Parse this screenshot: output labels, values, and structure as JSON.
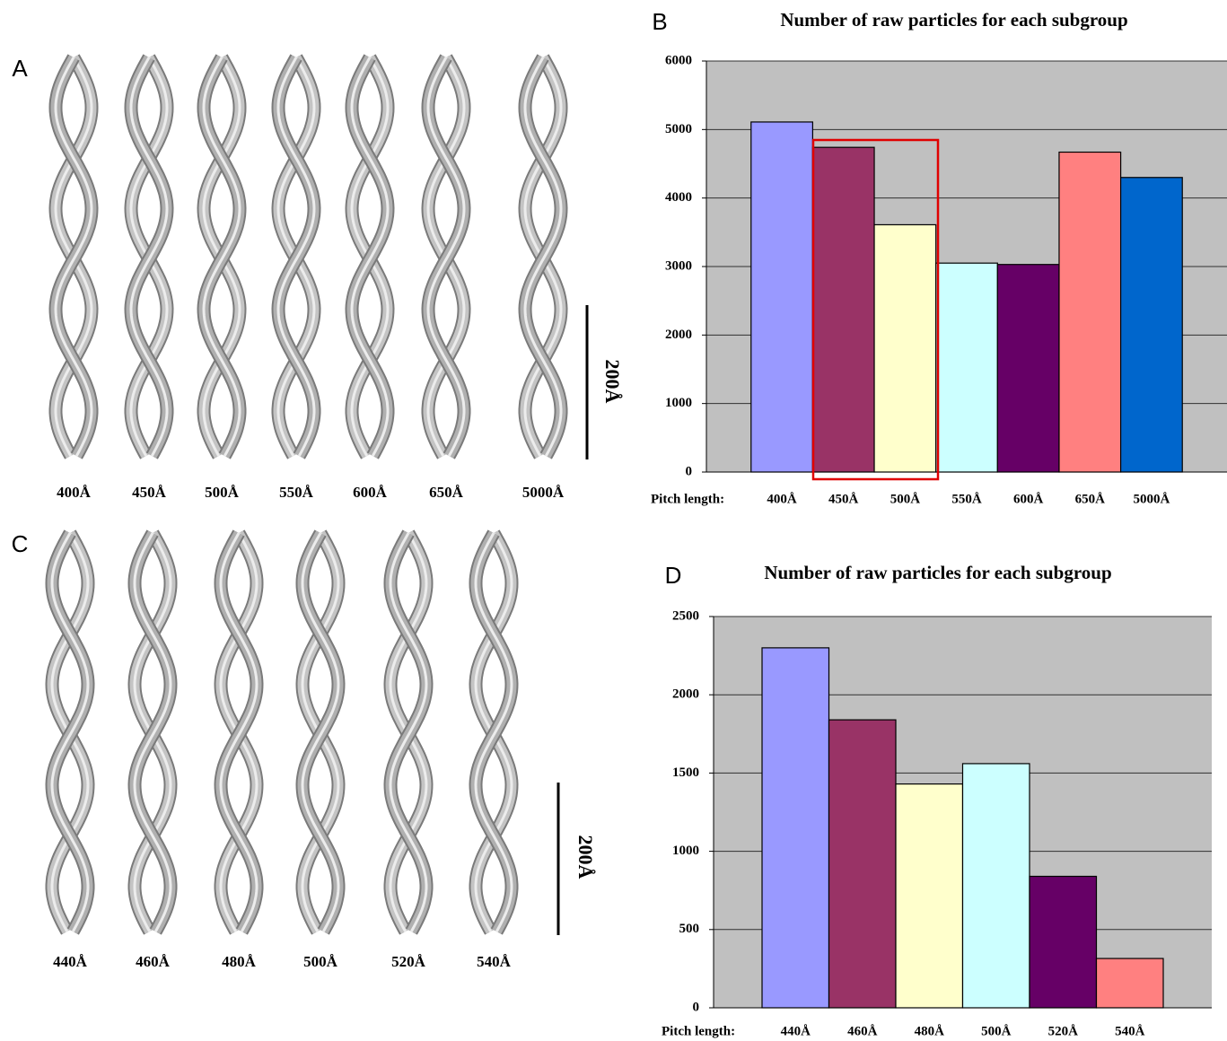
{
  "panels": [
    {
      "letter": "A",
      "labels": [
        "400Å",
        "450Å",
        "500Å",
        "550Å",
        "600Å",
        "650Å",
        "5000Å"
      ],
      "scale_bar": "200Å"
    },
    {
      "letter": "C",
      "labels": [
        "440Å",
        "460Å",
        "480Å",
        "500Å",
        "520Å",
        "540Å"
      ],
      "scale_bar": "200Å"
    }
  ],
  "chart_data": [
    {
      "type": "bar",
      "panel_label": "B",
      "title": "Number of raw particles for each subgroup",
      "x_label": "Pitch length:",
      "categories": [
        "400Å",
        "450Å",
        "500Å",
        "550Å",
        "600Å",
        "650Å",
        "5000Å"
      ],
      "values": [
        5110,
        4740,
        3610,
        3050,
        3030,
        4670,
        4300
      ],
      "colors": [
        "#9999ff",
        "#993366",
        "#ffffcc",
        "#ccffff",
        "#660066",
        "#ff8080",
        "#0066cc"
      ],
      "ylim": [
        0,
        6000
      ],
      "yticks": [
        0,
        1000,
        2000,
        3000,
        4000,
        5000,
        6000
      ],
      "grid": true
    },
    {
      "type": "bar",
      "panel_label": "D",
      "title": "Number of raw particles for each subgroup",
      "x_label": "Pitch length:",
      "categories": [
        "440Å",
        "460Å",
        "480Å",
        "500Å",
        "520Å",
        "540Å"
      ],
      "values": [
        2300,
        1840,
        1430,
        1560,
        840,
        315
      ],
      "colors": [
        "#9999ff",
        "#993366",
        "#ffffcc",
        "#ccffff",
        "#660066",
        "#ff8080"
      ],
      "ylim": [
        0,
        2500
      ],
      "yticks": [
        0,
        500,
        1000,
        1500,
        2000,
        2500
      ],
      "grid": true
    }
  ]
}
